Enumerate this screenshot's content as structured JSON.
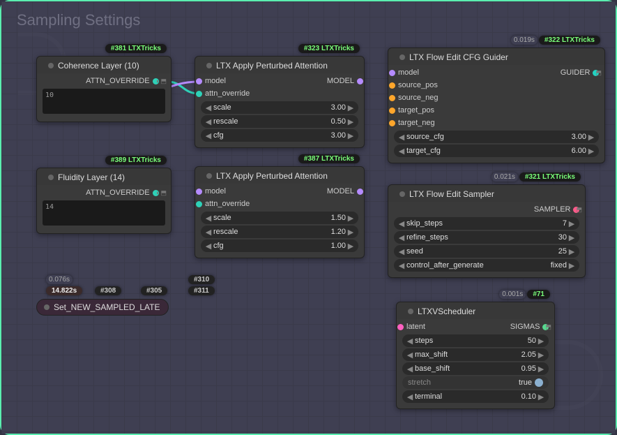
{
  "group_title": "Sampling Settings",
  "colors": {
    "model": "#b58bff",
    "attn": "#2ed1b8",
    "cond_pos": "#ffa62b",
    "cond_neg": "#ffa62b",
    "sampler": "#ff5a8a",
    "latent": "#ff60c0",
    "sigmas": "#56d88e",
    "guider": "#22d3c2"
  },
  "nodes": {
    "coherence": {
      "id": "#381",
      "pack": "LTXTricks",
      "title": "Coherence Layer (10)",
      "output": "ATTN_OVERRIDE",
      "text": "10"
    },
    "fluidity": {
      "id": "#389",
      "pack": "LTXTricks",
      "title": "Fluidity Layer (14)",
      "output": "ATTN_OVERRIDE",
      "text": "14"
    },
    "perturbed_a": {
      "id": "#323",
      "pack": "LTXTricks",
      "title": "LTX Apply Perturbed Attention",
      "inputs": {
        "model": "model",
        "attn": "attn_override"
      },
      "output": "MODEL",
      "widgets": [
        {
          "name": "scale",
          "value": "3.00"
        },
        {
          "name": "rescale",
          "value": "0.50"
        },
        {
          "name": "cfg",
          "value": "3.00"
        }
      ]
    },
    "perturbed_b": {
      "id": "#387",
      "pack": "LTXTricks",
      "title": "LTX Apply Perturbed Attention",
      "inputs": {
        "model": "model",
        "attn": "attn_override"
      },
      "output": "MODEL",
      "widgets": [
        {
          "name": "scale",
          "value": "1.50"
        },
        {
          "name": "rescale",
          "value": "1.20"
        },
        {
          "name": "cfg",
          "value": "1.00"
        }
      ]
    },
    "cfg_guider": {
      "id": "#322",
      "pack": "LTXTricks",
      "time": "0.019s",
      "title": "LTX Flow Edit CFG Guider",
      "inputs": [
        "model",
        "source_pos",
        "source_neg",
        "target_pos",
        "target_neg"
      ],
      "output": "GUIDER",
      "widgets": [
        {
          "name": "source_cfg",
          "value": "3.00"
        },
        {
          "name": "target_cfg",
          "value": "6.00"
        }
      ]
    },
    "edit_sampler": {
      "id": "#321",
      "pack": "LTXTricks",
      "time": "0.021s",
      "title": "LTX Flow Edit Sampler",
      "output": "SAMPLER",
      "widgets": [
        {
          "name": "skip_steps",
          "value": "7"
        },
        {
          "name": "refine_steps",
          "value": "30"
        },
        {
          "name": "seed",
          "value": "25"
        },
        {
          "name": "control_after_generate",
          "value": "fixed"
        }
      ]
    },
    "scheduler": {
      "id": "#71",
      "time": "0.001s",
      "title": "LTXVScheduler",
      "inputs": [
        "latent"
      ],
      "output": "SIGMAS",
      "widgets": [
        {
          "name": "steps",
          "value": "50"
        },
        {
          "name": "max_shift",
          "value": "2.05"
        },
        {
          "name": "base_shift",
          "value": "0.95"
        },
        {
          "name": "stretch",
          "value": "true",
          "toggle": true
        },
        {
          "name": "terminal",
          "value": "0.10"
        }
      ]
    },
    "set_latent": {
      "title": "Set_NEW_SAMPLED_LATE",
      "time": "14.822s",
      "ids": [
        "#308",
        "#305",
        "#311"
      ],
      "upper_time": "0.076s",
      "upper_id": "#310"
    }
  }
}
